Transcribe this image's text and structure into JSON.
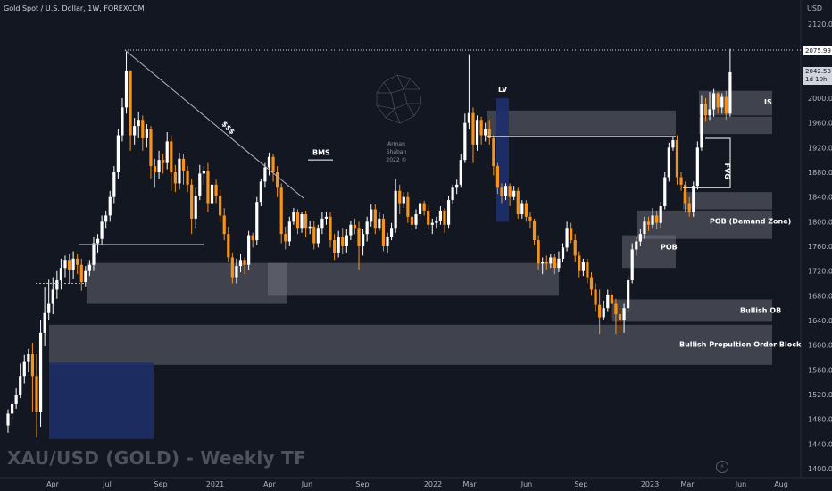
{
  "header": {
    "symbol_line": "Gold Spot / U.S. Dollar, 1W, FOREXCOM",
    "unit": "USD"
  },
  "watermark": {
    "title": "XAU/USD (GOLD) - Weekly TF",
    "brand_name": "Arman Shaban",
    "brand_year": "2022 ©"
  },
  "price_tags": {
    "high_line": "2075.99",
    "current": "2042.53",
    "countdown": "1d 10h"
  },
  "colors": {
    "background": "#131722",
    "bull": "#ffffff",
    "bear": "#f7931a",
    "zone": "#5a5d66",
    "blue_zone": "#1e2f6b"
  },
  "chart_data": {
    "type": "candlestick",
    "title": "XAU/USD (GOLD) - Weekly TF",
    "ylim": [
      1390,
      2140
    ],
    "y_ticks": [
      1400,
      1440,
      1480,
      1520,
      1560,
      1600,
      1640,
      1680,
      1720,
      1760,
      1800,
      1840,
      1880,
      1920,
      1960,
      2000,
      2040,
      2080,
      2120
    ],
    "x_labels": [
      "Apr",
      "Jul",
      "Sep",
      "2021",
      "Apr",
      "Jun",
      "Sep",
      "2022",
      "Mar",
      "Jun",
      "Sep",
      "2023",
      "Mar",
      "Jun",
      "Aug"
    ],
    "candles": [
      [
        1470,
        1489,
        1458,
        1496
      ],
      [
        1489,
        1505,
        1478,
        1510
      ],
      [
        1505,
        1520,
        1497,
        1530
      ],
      [
        1520,
        1550,
        1514,
        1570
      ],
      [
        1550,
        1574,
        1538,
        1584
      ],
      [
        1574,
        1586,
        1556,
        1594
      ],
      [
        1586,
        1550,
        1492,
        1604
      ],
      [
        1550,
        1492,
        1450,
        1586
      ],
      [
        1492,
        1620,
        1468,
        1640
      ],
      [
        1620,
        1652,
        1598,
        1694
      ],
      [
        1652,
        1668,
        1640,
        1706
      ],
      [
        1668,
        1690,
        1650,
        1710
      ],
      [
        1690,
        1705,
        1675,
        1720
      ],
      [
        1705,
        1725,
        1690,
        1740
      ],
      [
        1725,
        1738,
        1710,
        1745
      ],
      [
        1738,
        1722,
        1700,
        1748
      ],
      [
        1722,
        1740,
        1708,
        1752
      ],
      [
        1740,
        1730,
        1715,
        1748
      ],
      [
        1730,
        1702,
        1688,
        1740
      ],
      [
        1702,
        1720,
        1695,
        1728
      ],
      [
        1720,
        1730,
        1712,
        1738
      ],
      [
        1730,
        1765,
        1720,
        1775
      ],
      [
        1765,
        1772,
        1750,
        1780
      ],
      [
        1772,
        1800,
        1762,
        1810
      ],
      [
        1800,
        1810,
        1790,
        1818
      ],
      [
        1810,
        1840,
        1800,
        1850
      ],
      [
        1840,
        1880,
        1830,
        1890
      ],
      [
        1880,
        1940,
        1870,
        1950
      ],
      [
        1940,
        1985,
        1930,
        2000
      ],
      [
        1985,
        2045,
        1975,
        2075
      ],
      [
        2045,
        1940,
        1915,
        2045
      ],
      [
        1940,
        1955,
        1925,
        1968
      ],
      [
        1955,
        1965,
        1935,
        1978
      ],
      [
        1965,
        1935,
        1915,
        1972
      ],
      [
        1935,
        1950,
        1920,
        1958
      ],
      [
        1950,
        1890,
        1870,
        1955
      ],
      [
        1890,
        1880,
        1855,
        1902
      ],
      [
        1880,
        1900,
        1870,
        1915
      ],
      [
        1900,
        1895,
        1878,
        1910
      ],
      [
        1895,
        1930,
        1885,
        1945
      ],
      [
        1930,
        1880,
        1850,
        1940
      ],
      [
        1880,
        1862,
        1848,
        1892
      ],
      [
        1862,
        1902,
        1852,
        1912
      ],
      [
        1902,
        1882,
        1860,
        1910
      ],
      [
        1882,
        1860,
        1848,
        1890
      ],
      [
        1860,
        1805,
        1780,
        1870
      ],
      [
        1805,
        1842,
        1790,
        1855
      ],
      [
        1842,
        1878,
        1835,
        1892
      ],
      [
        1878,
        1882,
        1860,
        1890
      ],
      [
        1882,
        1830,
        1815,
        1895
      ],
      [
        1830,
        1860,
        1820,
        1870
      ],
      [
        1860,
        1842,
        1830,
        1868
      ],
      [
        1842,
        1810,
        1800,
        1852
      ],
      [
        1810,
        1780,
        1770,
        1822
      ],
      [
        1780,
        1742,
        1735,
        1792
      ],
      [
        1742,
        1710,
        1700,
        1750
      ],
      [
        1710,
        1728,
        1700,
        1740
      ],
      [
        1728,
        1738,
        1718,
        1748
      ],
      [
        1738,
        1730,
        1715,
        1742
      ],
      [
        1730,
        1778,
        1722,
        1785
      ],
      [
        1778,
        1770,
        1758,
        1782
      ],
      [
        1770,
        1832,
        1762,
        1840
      ],
      [
        1832,
        1865,
        1825,
        1870
      ],
      [
        1865,
        1888,
        1855,
        1895
      ],
      [
        1888,
        1905,
        1875,
        1912
      ],
      [
        1905,
        1880,
        1865,
        1910
      ],
      [
        1880,
        1855,
        1840,
        1890
      ],
      [
        1855,
        1780,
        1765,
        1862
      ],
      [
        1780,
        1768,
        1755,
        1792
      ],
      [
        1768,
        1800,
        1760,
        1808
      ],
      [
        1800,
        1815,
        1795,
        1822
      ],
      [
        1815,
        1790,
        1780,
        1820
      ],
      [
        1790,
        1812,
        1782,
        1816
      ],
      [
        1812,
        1790,
        1775,
        1818
      ],
      [
        1790,
        1792,
        1780,
        1802
      ],
      [
        1792,
        1765,
        1755,
        1802
      ],
      [
        1765,
        1790,
        1758,
        1795
      ],
      [
        1790,
        1805,
        1780,
        1815
      ],
      [
        1805,
        1808,
        1795,
        1815
      ],
      [
        1808,
        1770,
        1758,
        1815
      ],
      [
        1770,
        1750,
        1738,
        1780
      ],
      [
        1750,
        1775,
        1742,
        1785
      ],
      [
        1775,
        1760,
        1748,
        1790
      ],
      [
        1760,
        1778,
        1750,
        1788
      ],
      [
        1778,
        1795,
        1770,
        1802
      ],
      [
        1795,
        1790,
        1780,
        1805
      ],
      [
        1790,
        1760,
        1722,
        1800
      ],
      [
        1760,
        1780,
        1745,
        1788
      ],
      [
        1780,
        1800,
        1768,
        1808
      ],
      [
        1800,
        1820,
        1792,
        1828
      ],
      [
        1820,
        1790,
        1780,
        1828
      ],
      [
        1790,
        1805,
        1785,
        1815
      ],
      [
        1805,
        1760,
        1752,
        1812
      ],
      [
        1760,
        1775,
        1750,
        1782
      ],
      [
        1775,
        1790,
        1770,
        1798
      ],
      [
        1790,
        1850,
        1782,
        1870
      ],
      [
        1850,
        1830,
        1812,
        1860
      ],
      [
        1830,
        1840,
        1822,
        1848
      ],
      [
        1840,
        1808,
        1798,
        1848
      ],
      [
        1808,
        1795,
        1785,
        1815
      ],
      [
        1795,
        1812,
        1788,
        1820
      ],
      [
        1812,
        1830,
        1805,
        1836
      ],
      [
        1830,
        1818,
        1810,
        1834
      ],
      [
        1818,
        1795,
        1788,
        1826
      ],
      [
        1795,
        1798,
        1780,
        1805
      ],
      [
        1798,
        1802,
        1790,
        1808
      ],
      [
        1802,
        1818,
        1795,
        1825
      ],
      [
        1818,
        1795,
        1782,
        1822
      ],
      [
        1795,
        1835,
        1790,
        1842
      ],
      [
        1835,
        1855,
        1828,
        1860
      ],
      [
        1855,
        1860,
        1845,
        1868
      ],
      [
        1860,
        1900,
        1855,
        1910
      ],
      [
        1900,
        1960,
        1895,
        1975
      ],
      [
        1960,
        1976,
        1950,
        2070
      ],
      [
        1976,
        1925,
        1895,
        1985
      ],
      [
        1925,
        1965,
        1915,
        1972
      ],
      [
        1965,
        1940,
        1925,
        1970
      ],
      [
        1940,
        1950,
        1930,
        1960
      ],
      [
        1950,
        1935,
        1925,
        1965
      ],
      [
        1935,
        1890,
        1875,
        1940
      ],
      [
        1890,
        1855,
        1845,
        1895
      ],
      [
        1855,
        1842,
        1830,
        1862
      ],
      [
        1842,
        1858,
        1835,
        1862
      ],
      [
        1858,
        1840,
        1825,
        1862
      ],
      [
        1840,
        1850,
        1835,
        1858
      ],
      [
        1850,
        1812,
        1805,
        1855
      ],
      [
        1812,
        1830,
        1805,
        1835
      ],
      [
        1830,
        1808,
        1800,
        1835
      ],
      [
        1808,
        1802,
        1790,
        1815
      ],
      [
        1802,
        1770,
        1762,
        1805
      ],
      [
        1770,
        1732,
        1722,
        1778
      ],
      [
        1732,
        1735,
        1715,
        1742
      ],
      [
        1735,
        1732,
        1722,
        1745
      ],
      [
        1732,
        1742,
        1725,
        1748
      ],
      [
        1742,
        1725,
        1715,
        1748
      ],
      [
        1725,
        1740,
        1718,
        1752
      ],
      [
        1740,
        1758,
        1735,
        1765
      ],
      [
        1758,
        1790,
        1752,
        1800
      ],
      [
        1790,
        1770,
        1765,
        1798
      ],
      [
        1770,
        1745,
        1735,
        1780
      ],
      [
        1745,
        1720,
        1710,
        1752
      ],
      [
        1720,
        1735,
        1712,
        1740
      ],
      [
        1735,
        1710,
        1700,
        1740
      ],
      [
        1710,
        1690,
        1680,
        1718
      ],
      [
        1690,
        1665,
        1655,
        1700
      ],
      [
        1665,
        1645,
        1618,
        1690
      ],
      [
        1645,
        1660,
        1640,
        1672
      ],
      [
        1660,
        1682,
        1655,
        1690
      ],
      [
        1682,
        1668,
        1640,
        1695
      ],
      [
        1668,
        1650,
        1618,
        1675
      ],
      [
        1650,
        1640,
        1620,
        1660
      ],
      [
        1640,
        1660,
        1620,
        1668
      ],
      [
        1660,
        1705,
        1655,
        1712
      ],
      [
        1705,
        1755,
        1700,
        1765
      ],
      [
        1755,
        1768,
        1745,
        1775
      ],
      [
        1768,
        1780,
        1760,
        1788
      ],
      [
        1780,
        1800,
        1772,
        1808
      ],
      [
        1800,
        1795,
        1785,
        1808
      ],
      [
        1795,
        1810,
        1790,
        1822
      ],
      [
        1810,
        1798,
        1788,
        1818
      ],
      [
        1798,
        1825,
        1790,
        1832
      ],
      [
        1825,
        1872,
        1820,
        1880
      ],
      [
        1872,
        1920,
        1865,
        1928
      ],
      [
        1920,
        1932,
        1915,
        1938
      ],
      [
        1932,
        1872,
        1860,
        1940
      ],
      [
        1872,
        1860,
        1850,
        1880
      ],
      [
        1860,
        1830,
        1815,
        1865
      ],
      [
        1830,
        1815,
        1808,
        1840
      ],
      [
        1815,
        1858,
        1808,
        1865
      ],
      [
        1858,
        1920,
        1852,
        1930
      ],
      [
        1920,
        1990,
        1915,
        2005
      ],
      [
        1990,
        1972,
        1962,
        2000
      ],
      [
        1972,
        1982,
        1965,
        2010
      ],
      [
        1982,
        2008,
        1970,
        2015
      ],
      [
        2008,
        1985,
        1975,
        2010
      ],
      [
        1985,
        2002,
        1975,
        2008
      ],
      [
        2002,
        1975,
        1965,
        2012
      ],
      [
        1975,
        2042,
        1970,
        2080
      ]
    ]
  },
  "annotations": {
    "bms_label": "BMS",
    "lv_label": "LV",
    "sss_label": "$$$",
    "fvg_label": "FVG",
    "zones": [
      {
        "label": "IS"
      },
      {
        "label": "POB (Demand Zone)"
      },
      {
        "label": "POB"
      },
      {
        "label": "Bullish OB"
      },
      {
        "label": "Bullish Propultion Order Block"
      }
    ]
  }
}
